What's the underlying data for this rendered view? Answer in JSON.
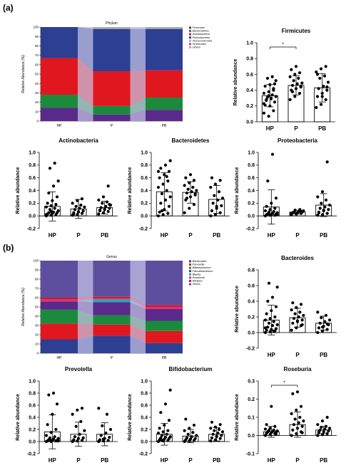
{
  "panel_labels": {
    "a": "(a)",
    "b": "(b)"
  },
  "chart_data": [
    {
      "id": "phylum",
      "type": "bar",
      "title": "Phylum",
      "ylabel": "Relative Abundance (%)",
      "ylim": [
        0,
        100
      ],
      "yticks": [
        0,
        10,
        20,
        30,
        40,
        50,
        60,
        70,
        80,
        90,
        100
      ],
      "categories": [
        "HP",
        "P",
        "PB"
      ],
      "series": [
        {
          "name": "Firmicutes",
          "color": "#5a2a8a",
          "values": [
            14,
            7,
            12
          ]
        },
        {
          "name": "Bacteroidetes",
          "color": "#1b8a3c",
          "values": [
            14,
            9,
            13
          ]
        },
        {
          "name": "Actinobacteria",
          "color": "#e0171f",
          "values": [
            39,
            37,
            29
          ]
        },
        {
          "name": "Proteobacteria",
          "color": "#2c3f93",
          "values": [
            33,
            45,
            44
          ]
        },
        {
          "name": "Verrucomicrobia",
          "color": "#b5a8d8",
          "values": [
            0,
            0,
            0
          ]
        },
        {
          "name": "Tenericutes",
          "color": "#8e54a8",
          "values": [
            0,
            0,
            0
          ]
        },
        {
          "name": "Others",
          "color": "#a9a9a9",
          "values": [
            0,
            0,
            0
          ]
        }
      ]
    },
    {
      "id": "genus",
      "type": "bar",
      "title": "Genus",
      "ylabel": "Relative Abundance (%)",
      "ylim": [
        0,
        100
      ],
      "yticks": [
        0,
        10,
        20,
        30,
        40,
        50,
        60,
        70,
        80,
        90,
        100
      ],
      "categories": [
        "HP",
        "P",
        "PB"
      ],
      "series": [
        {
          "name": "Bacteroides",
          "color": "#2c3f93",
          "values": [
            15,
            19,
            11
          ]
        },
        {
          "name": "Prevotella",
          "color": "#e0171f",
          "values": [
            17,
            12,
            13
          ]
        },
        {
          "name": "Bifidobacterium",
          "color": "#1b8a3c",
          "values": [
            15,
            10,
            11
          ]
        },
        {
          "name": "Faecalibacterium",
          "color": "#5a2a8a",
          "values": [
            9,
            14,
            13
          ]
        },
        {
          "name": "Blautia",
          "color": "#20a8b8",
          "values": [
            0,
            3,
            0
          ]
        },
        {
          "name": "Roseburia",
          "color": "#ee2a7b",
          "values": [
            2,
            1,
            2
          ]
        },
        {
          "name": "Alistipes",
          "color": "#c81e28",
          "values": [
            2,
            2,
            2
          ]
        },
        {
          "name": "Others",
          "color": "#5e4f9e",
          "values": [
            40,
            39,
            48
          ]
        }
      ]
    },
    {
      "id": "firmicutes",
      "type": "scatter",
      "title": "Firmicutes",
      "ylabel": "Relative abundance",
      "categories": [
        "HP",
        "P",
        "PB"
      ],
      "ylim": [
        0,
        1.0
      ],
      "yticks": [
        0.0,
        0.2,
        0.4,
        0.6,
        0.8,
        1.0
      ],
      "means": [
        0.33,
        0.46,
        0.43
      ],
      "sd": [
        0.14,
        0.12,
        0.18
      ],
      "points": [
        [
          0.11,
          0.07,
          0.14,
          0.21,
          0.2,
          0.25,
          0.27,
          0.29,
          0.32,
          0.31,
          0.34,
          0.36,
          0.38,
          0.42,
          0.45,
          0.47,
          0.48,
          0.28,
          0.3,
          0.52,
          0.55,
          0.57,
          0.23,
          0.33,
          0.4
        ],
        [
          0.28,
          0.32,
          0.36,
          0.4,
          0.42,
          0.44,
          0.46,
          0.48,
          0.49,
          0.52,
          0.55,
          0.57,
          0.6,
          0.62,
          0.66,
          0.7,
          0.45,
          0.38
        ],
        [
          0.18,
          0.22,
          0.28,
          0.32,
          0.36,
          0.4,
          0.42,
          0.45,
          0.5,
          0.55,
          0.58,
          0.63,
          0.67,
          0.7,
          0.6,
          0.32,
          0.44
        ]
      ],
      "significance": [
        {
          "pair": [
            0,
            1
          ],
          "label": "*"
        }
      ]
    },
    {
      "id": "actinobacteria",
      "type": "scatter",
      "title": "Actinobacteria",
      "ylabel": "Relative abundance",
      "categories": [
        "HP",
        "P",
        "PB"
      ],
      "ylim": [
        -0.2,
        1.0
      ],
      "yticks": [
        -0.2,
        0.0,
        0.2,
        0.4,
        0.6,
        0.8,
        1.0
      ],
      "means": [
        0.15,
        0.11,
        0.13
      ],
      "sd": [
        0.23,
        0.15,
        0.1
      ],
      "points": [
        [
          0.0,
          0.01,
          0.02,
          0.03,
          0.04,
          0.05,
          0.05,
          0.06,
          0.08,
          0.1,
          0.12,
          0.14,
          0.16,
          0.18,
          0.2,
          0.24,
          0.3,
          0.36,
          0.47,
          0.55,
          0.75,
          0.83,
          0.02,
          0.07
        ],
        [
          0.01,
          0.02,
          0.04,
          0.05,
          0.07,
          0.08,
          0.1,
          0.12,
          0.14,
          0.15,
          0.17,
          0.2,
          0.24,
          0.27,
          0.03,
          0.06
        ],
        [
          0.03,
          0.05,
          0.07,
          0.08,
          0.1,
          0.12,
          0.13,
          0.15,
          0.17,
          0.2,
          0.22,
          0.25,
          0.3,
          0.47,
          0.09,
          0.11,
          0.18
        ]
      ]
    },
    {
      "id": "bacteroidetes",
      "type": "scatter",
      "title": "Bacteroidetes",
      "ylabel": "Relative abundance",
      "categories": [
        "HP",
        "P",
        "PB"
      ],
      "ylim": [
        -0.2,
        1.0
      ],
      "yticks": [
        -0.2,
        0.0,
        0.2,
        0.4,
        0.6,
        0.8,
        1.0
      ],
      "means": [
        0.38,
        0.37,
        0.26
      ],
      "sd": [
        0.3,
        0.17,
        0.22
      ],
      "points": [
        [
          0.0,
          0.02,
          0.04,
          0.06,
          0.1,
          0.15,
          0.2,
          0.25,
          0.3,
          0.35,
          0.4,
          0.45,
          0.5,
          0.55,
          0.6,
          0.65,
          0.7,
          0.75,
          0.8,
          0.87,
          0.08,
          0.62,
          0.7
        ],
        [
          0.05,
          0.12,
          0.18,
          0.25,
          0.3,
          0.33,
          0.36,
          0.38,
          0.4,
          0.42,
          0.45,
          0.48,
          0.52,
          0.56,
          0.6,
          0.65,
          0.35,
          0.28
        ],
        [
          0.0,
          0.02,
          0.05,
          0.08,
          0.12,
          0.16,
          0.2,
          0.25,
          0.28,
          0.32,
          0.38,
          0.45,
          0.5,
          0.56,
          0.6,
          0.15
        ]
      ]
    },
    {
      "id": "proteobacteria",
      "type": "scatter",
      "title": "Proteobacteria",
      "ylabel": "Relative abundance",
      "categories": [
        "HP",
        "P",
        "PB"
      ],
      "ylim": [
        -0.2,
        1.0
      ],
      "yticks": [
        -0.2,
        0.0,
        0.2,
        0.4,
        0.6,
        0.8,
        1.0
      ],
      "means": [
        0.14,
        0.06,
        0.17
      ],
      "sd": [
        0.27,
        0.03,
        0.18
      ],
      "points": [
        [
          0.0,
          0.01,
          0.01,
          0.02,
          0.02,
          0.03,
          0.03,
          0.04,
          0.05,
          0.06,
          0.07,
          0.08,
          0.1,
          0.12,
          0.15,
          0.2,
          0.28,
          0.55,
          0.97,
          0.02,
          0.04
        ],
        [
          0.02,
          0.03,
          0.04,
          0.05,
          0.05,
          0.06,
          0.06,
          0.07,
          0.08,
          0.09,
          0.1,
          0.04,
          0.03,
          0.07
        ],
        [
          0.01,
          0.02,
          0.04,
          0.06,
          0.08,
          0.1,
          0.12,
          0.14,
          0.17,
          0.2,
          0.25,
          0.3,
          0.38,
          0.85,
          0.05,
          0.09
        ]
      ]
    },
    {
      "id": "bacteroides",
      "type": "scatter",
      "title": "Bacteroides",
      "ylabel": "Relative abundance",
      "categories": [
        "HP",
        "P",
        "PB"
      ],
      "ylim": [
        -0.2,
        0.8
      ],
      "yticks": [
        -0.2,
        0.0,
        0.2,
        0.4,
        0.6,
        0.8
      ],
      "means": [
        0.16,
        0.19,
        0.12
      ],
      "sd": [
        0.19,
        0.12,
        0.09
      ],
      "points": [
        [
          0.0,
          0.01,
          0.02,
          0.03,
          0.04,
          0.05,
          0.07,
          0.09,
          0.1,
          0.12,
          0.14,
          0.16,
          0.18,
          0.2,
          0.24,
          0.28,
          0.33,
          0.4,
          0.45,
          0.58,
          0.63,
          0.02,
          0.06
        ],
        [
          0.03,
          0.06,
          0.09,
          0.12,
          0.14,
          0.16,
          0.18,
          0.2,
          0.22,
          0.24,
          0.26,
          0.29,
          0.32,
          0.36,
          0.38,
          0.15,
          0.1
        ],
        [
          0.0,
          0.02,
          0.04,
          0.06,
          0.08,
          0.1,
          0.12,
          0.14,
          0.16,
          0.19,
          0.22,
          0.26,
          0.07,
          0.11
        ]
      ]
    },
    {
      "id": "prevotella",
      "type": "scatter",
      "title": "Prevotella",
      "ylabel": "Relative abundance",
      "categories": [
        "HP",
        "P",
        "PB"
      ],
      "ylim": [
        -0.2,
        1.0
      ],
      "yticks": [
        -0.2,
        0.0,
        0.2,
        0.4,
        0.6,
        0.8,
        1.0
      ],
      "means": [
        0.16,
        0.12,
        0.12
      ],
      "sd": [
        0.28,
        0.2,
        0.19
      ],
      "points": [
        [
          0.0,
          0.0,
          0.01,
          0.01,
          0.02,
          0.02,
          0.03,
          0.04,
          0.05,
          0.06,
          0.08,
          0.1,
          0.15,
          0.2,
          0.28,
          0.45,
          0.62,
          0.77,
          0.8,
          0.01,
          0.03
        ],
        [
          0.0,
          0.01,
          0.02,
          0.03,
          0.05,
          0.06,
          0.08,
          0.12,
          0.18,
          0.25,
          0.33,
          0.45,
          0.52,
          0.55,
          0.02
        ],
        [
          0.0,
          0.01,
          0.02,
          0.03,
          0.05,
          0.07,
          0.1,
          0.14,
          0.2,
          0.26,
          0.45,
          0.55,
          0.04
        ]
      ]
    },
    {
      "id": "bifidobacterium",
      "type": "scatter",
      "title": "Bifidobacterium",
      "ylabel": "Relative abundance",
      "categories": [
        "HP",
        "P",
        "PB"
      ],
      "ylim": [
        -0.2,
        1.0
      ],
      "yticks": [
        -0.2,
        0.0,
        0.2,
        0.4,
        0.6,
        0.8,
        1.0
      ],
      "means": [
        0.12,
        0.09,
        0.12
      ],
      "sd": [
        0.18,
        0.11,
        0.11
      ],
      "points": [
        [
          0.0,
          0.01,
          0.02,
          0.03,
          0.04,
          0.05,
          0.06,
          0.07,
          0.08,
          0.1,
          0.12,
          0.14,
          0.16,
          0.18,
          0.22,
          0.27,
          0.35,
          0.48,
          0.62,
          0.85,
          0.02
        ],
        [
          0.0,
          0.01,
          0.02,
          0.03,
          0.04,
          0.05,
          0.06,
          0.08,
          0.1,
          0.12,
          0.15,
          0.18,
          0.22,
          0.27,
          0.37,
          0.04
        ],
        [
          0.01,
          0.03,
          0.05,
          0.06,
          0.08,
          0.1,
          0.12,
          0.14,
          0.16,
          0.18,
          0.2,
          0.22,
          0.24,
          0.28,
          0.32,
          0.09
        ]
      ]
    },
    {
      "id": "roseburia",
      "type": "scatter",
      "title": "Roseburia",
      "ylabel": "Relative abundance",
      "categories": [
        "HP",
        "P",
        "PB"
      ],
      "ylim": [
        -0.1,
        0.3
      ],
      "yticks": [
        -0.1,
        0.0,
        0.1,
        0.2,
        0.3
      ],
      "means": [
        0.02,
        0.06,
        0.03
      ],
      "sd": [
        0.03,
        0.07,
        0.02
      ],
      "points": [
        [
          0.0,
          0.005,
          0.01,
          0.012,
          0.015,
          0.018,
          0.02,
          0.022,
          0.025,
          0.028,
          0.03,
          0.035,
          0.04,
          0.05,
          0.06,
          0.16,
          0.008,
          0.02
        ],
        [
          0.0,
          0.01,
          0.02,
          0.03,
          0.04,
          0.05,
          0.06,
          0.07,
          0.08,
          0.09,
          0.1,
          0.12,
          0.14,
          0.16,
          0.23,
          0.24,
          0.015
        ],
        [
          0.0,
          0.005,
          0.01,
          0.015,
          0.02,
          0.025,
          0.03,
          0.035,
          0.04,
          0.045,
          0.05,
          0.06,
          0.08,
          0.1,
          0.02
        ]
      ],
      "significance": [
        {
          "pair": [
            0,
            1
          ],
          "label": "*"
        }
      ]
    }
  ]
}
